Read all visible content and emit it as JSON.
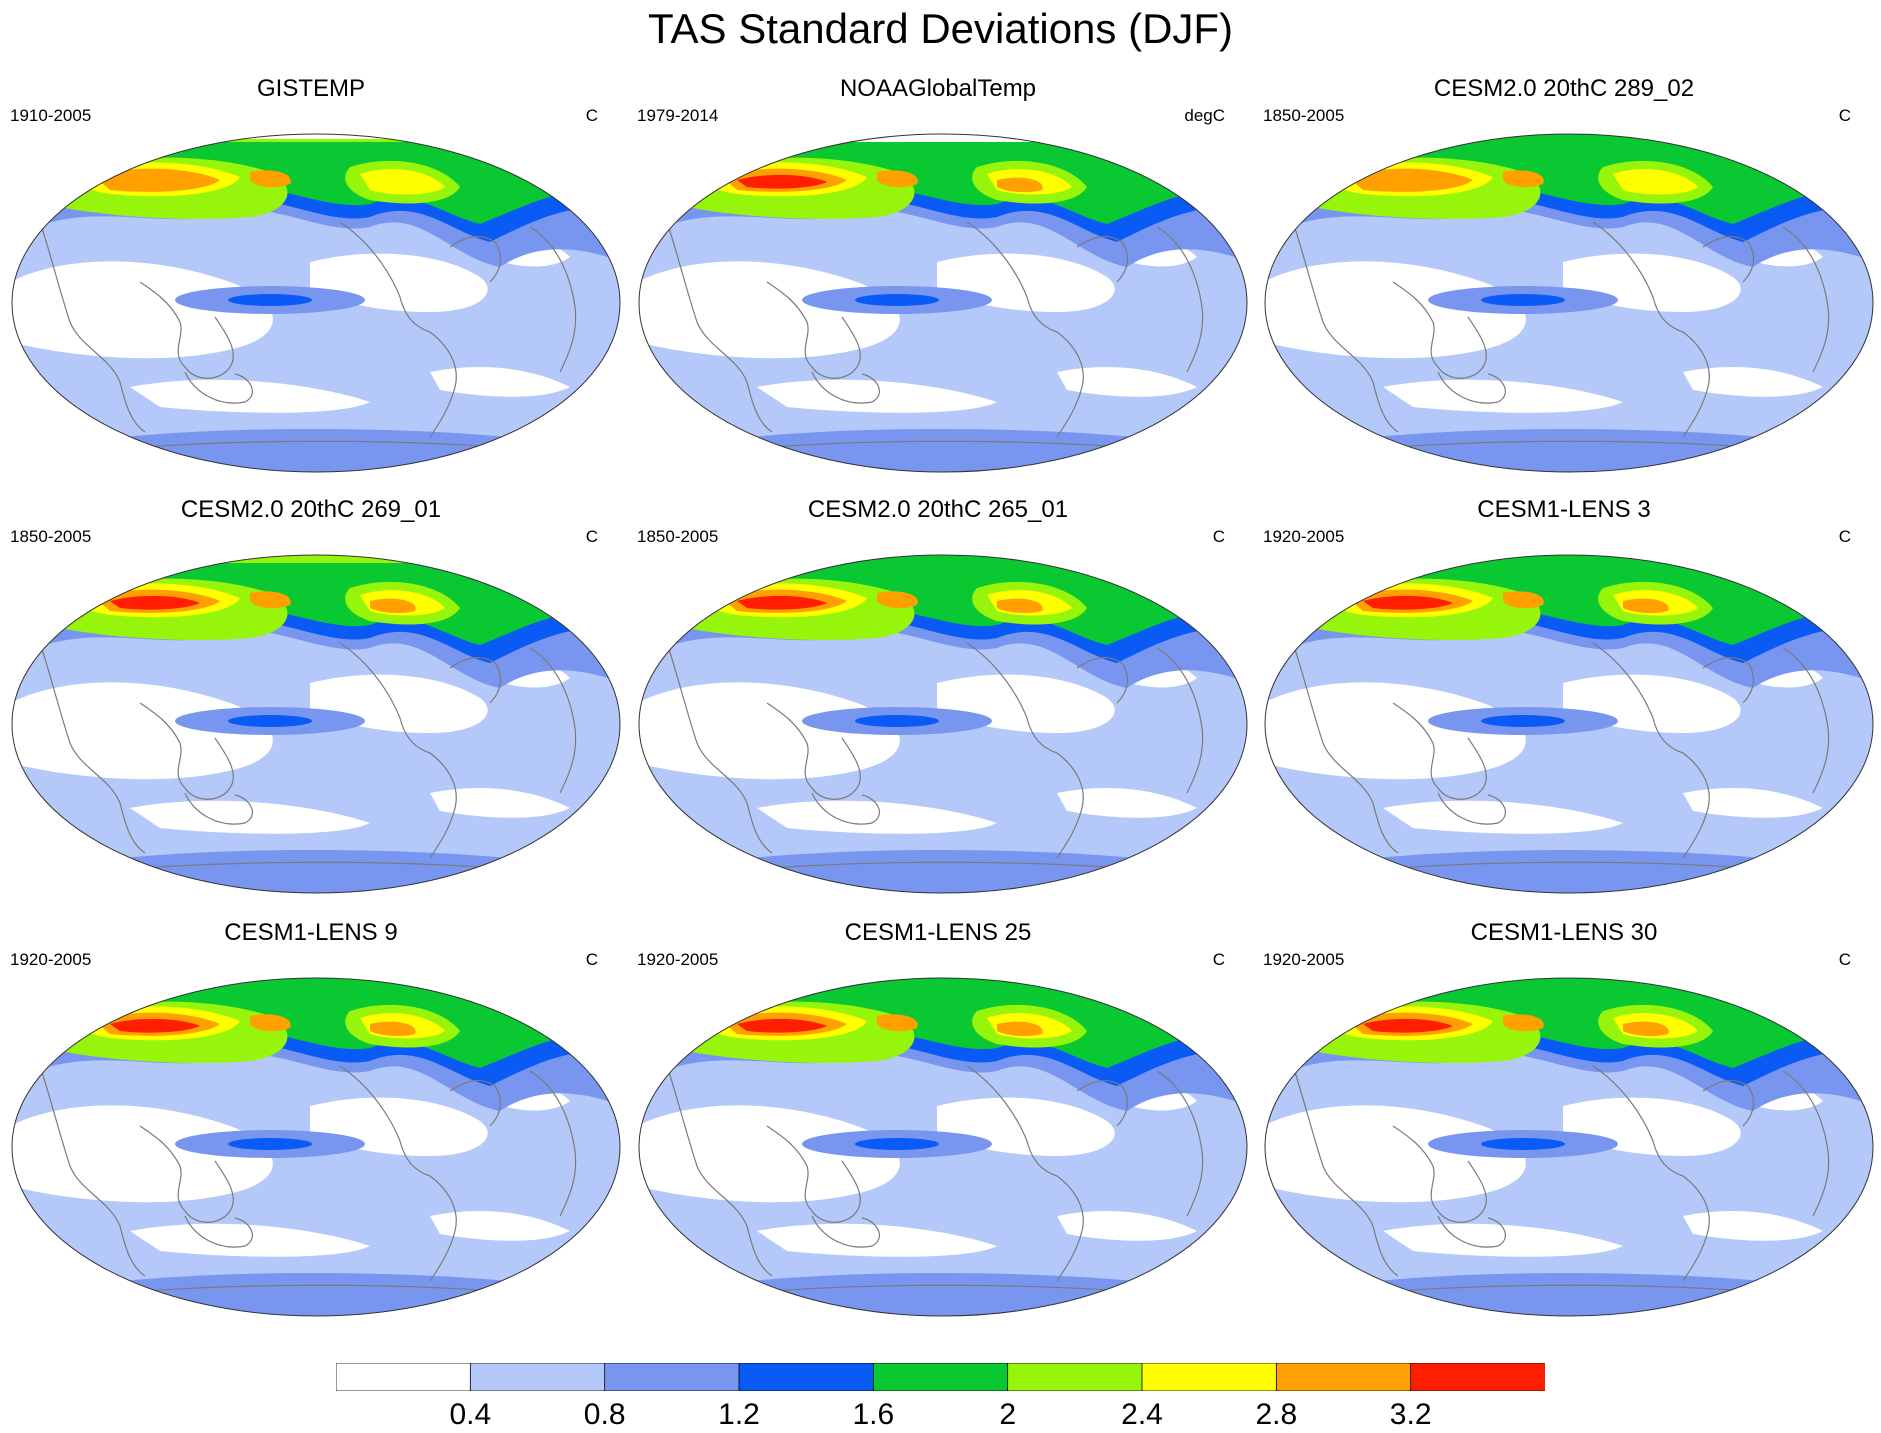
{
  "title": "TAS Standard Deviations (DJF)",
  "panels": [
    {
      "title": "GISTEMP",
      "period": "1910-2005",
      "units": "C",
      "arctic_level": 5,
      "warm_level": 7,
      "mask_north": true
    },
    {
      "title": "NOAAGlobalTemp",
      "period": "1979-2014",
      "units": "degC",
      "arctic_level": 0,
      "warm_level": 8,
      "mask_north": true
    },
    {
      "title": "CESM2.0 20thC 289_02",
      "period": "1850-2005",
      "units": "C",
      "arctic_level": 4,
      "warm_level": 7,
      "mask_north": false
    },
    {
      "title": "CESM2.0 20thC 269_01",
      "period": "1850-2005",
      "units": "C",
      "arctic_level": 5,
      "warm_level": 8,
      "mask_north": false
    },
    {
      "title": "CESM2.0 20thC 265_01",
      "period": "1850-2005",
      "units": "C",
      "arctic_level": 4,
      "warm_level": 8,
      "mask_north": false
    },
    {
      "title": "CESM1-LENS 3",
      "period": "1920-2005",
      "units": "C",
      "arctic_level": 4,
      "warm_level": 8,
      "mask_north": false
    },
    {
      "title": "CESM1-LENS 9",
      "period": "1920-2005",
      "units": "C",
      "arctic_level": 4,
      "warm_level": 8,
      "mask_north": false
    },
    {
      "title": "CESM1-LENS 25",
      "period": "1920-2005",
      "units": "C",
      "arctic_level": 4,
      "warm_level": 8,
      "mask_north": false
    },
    {
      "title": "CESM1-LENS 30",
      "period": "1920-2005",
      "units": "C",
      "arctic_level": 4,
      "warm_level": 8,
      "mask_north": false
    }
  ],
  "colorbar": {
    "labels": [
      "0.4",
      "0.8",
      "1.2",
      "1.6",
      "2",
      "2.4",
      "2.8",
      "3.2"
    ],
    "colors": [
      "#ffffff",
      "#b4c8fa",
      "#7896f0",
      "#0a5af5",
      "#0ac832",
      "#96f50a",
      "#ffff00",
      "#ffa000",
      "#ff1e00"
    ]
  }
}
